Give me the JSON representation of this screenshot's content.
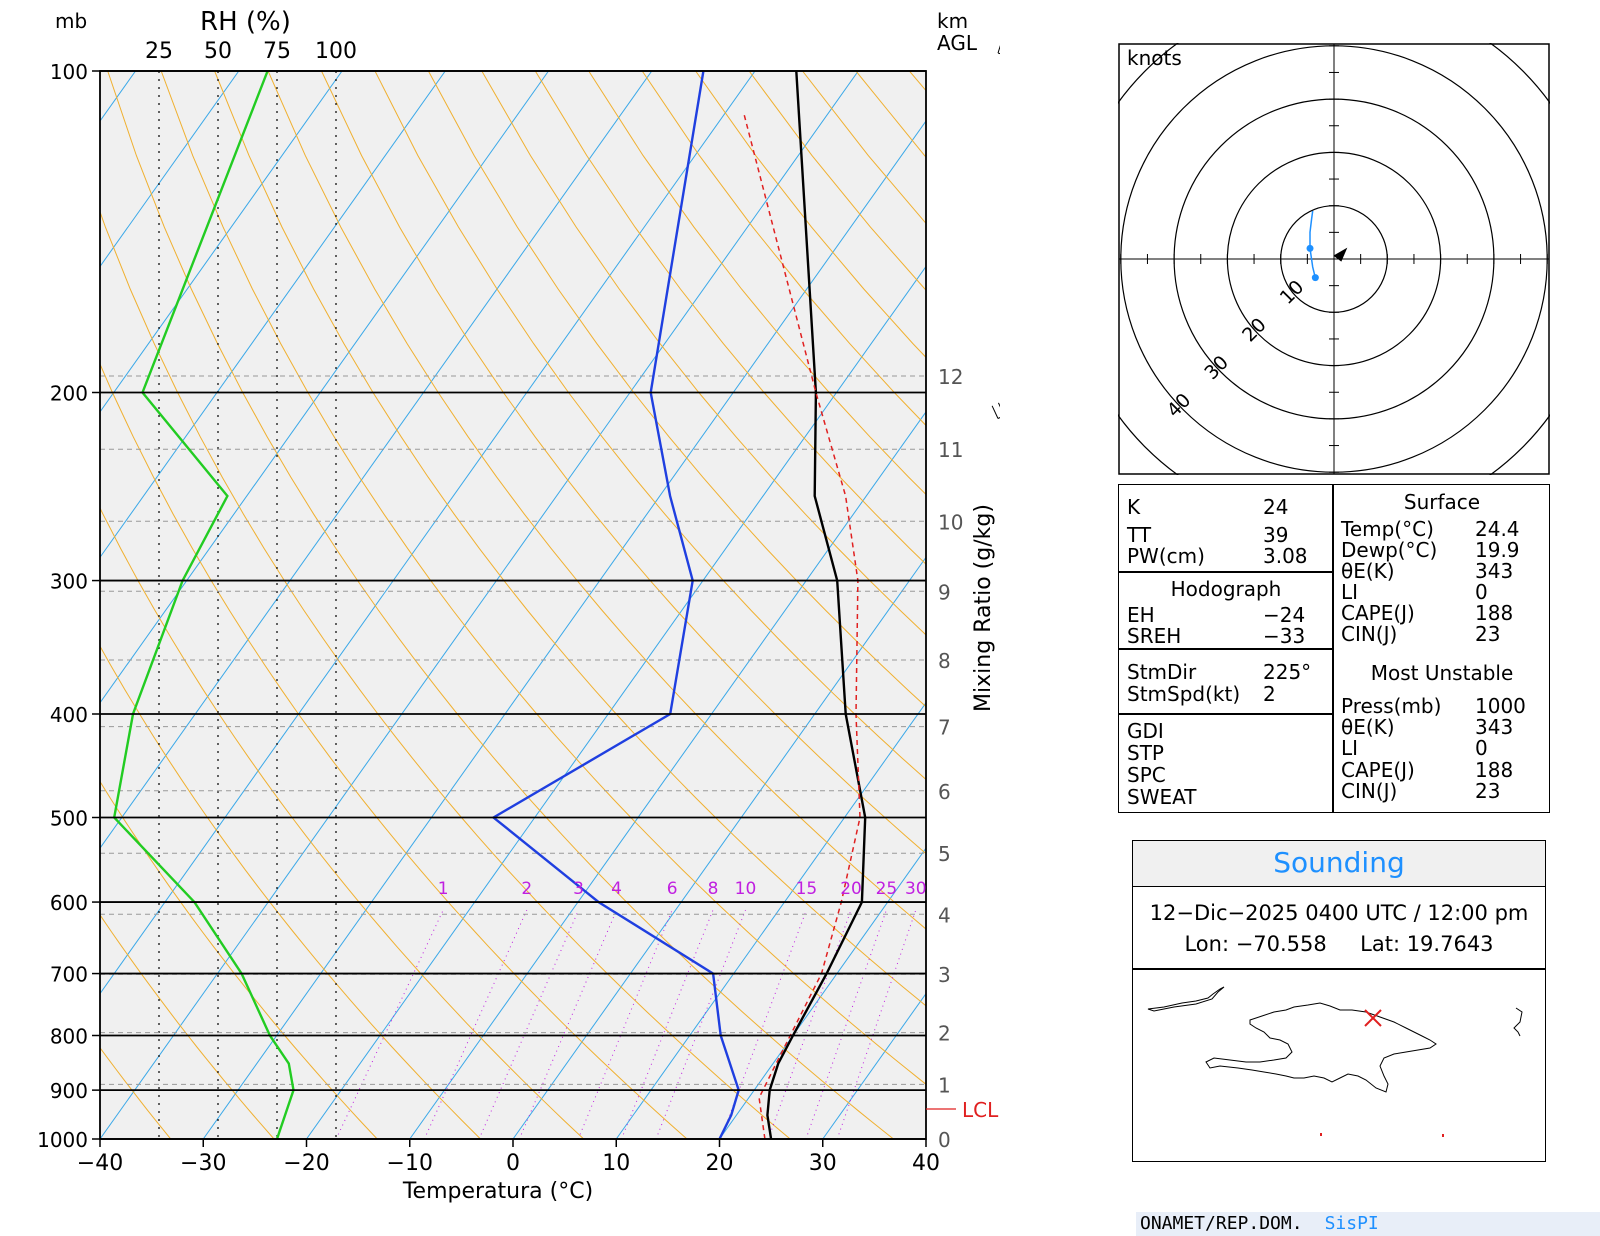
{
  "skewt": {
    "left_labels": {
      "mb": "mb",
      "rh": "RH (%)",
      "km": "km",
      "agl": "AGL"
    },
    "rh_ticks": [
      "25",
      "50",
      "75",
      "100"
    ],
    "pressure_levels": [
      100,
      200,
      300,
      400,
      500,
      600,
      700,
      800,
      900,
      1000
    ],
    "temp_ticks": [
      "−40",
      "−30",
      "−20",
      "−10",
      "0",
      "10",
      "20",
      "30",
      "40"
    ],
    "xlabel": "Temperatura (°C)",
    "mixing_ratio_label": "Mixing Ratio (g/kg)",
    "mixing_ratio_values": [
      "1",
      "2",
      "3",
      "4",
      "6",
      "8",
      "10",
      "15",
      "20",
      "25",
      "30"
    ],
    "height_km_ticks": [
      "0",
      "1",
      "2",
      "3",
      "4",
      "5",
      "6",
      "7",
      "8",
      "9",
      "10",
      "11",
      "12"
    ],
    "lcl_label": "LCL",
    "colors": {
      "temperature": "#000000",
      "dewpoint": "#1f3fe0",
      "rh": "#22cc22",
      "parcel": "#e02020",
      "dry_adiabat": "#f0b030",
      "isotherm": "#3aa8e8",
      "mixing_ratio": "#c020e0"
    }
  },
  "chart_data": {
    "type": "line",
    "x_axis": {
      "label": "Temperatura (°C)",
      "range": [
        -40,
        40
      ]
    },
    "y_axis": {
      "label": "mb",
      "range": [
        1000,
        100
      ],
      "scale": "log"
    },
    "series": [
      {
        "name": "Temperatura",
        "points": [
          [
            1000,
            25
          ],
          [
            950,
            23
          ],
          [
            900,
            21.5
          ],
          [
            850,
            20.5
          ],
          [
            800,
            20
          ],
          [
            700,
            19
          ],
          [
            600,
            17.5
          ],
          [
            500,
            12
          ],
          [
            400,
            3
          ],
          [
            300,
            -7
          ],
          [
            250,
            -15
          ],
          [
            200,
            -22
          ],
          [
            100,
            -46
          ]
        ]
      },
      {
        "name": "Dewpoint",
        "points": [
          [
            1000,
            20
          ],
          [
            950,
            19.5
          ],
          [
            900,
            18.5
          ],
          [
            800,
            13
          ],
          [
            700,
            8
          ],
          [
            600,
            -8
          ],
          [
            500,
            -24
          ],
          [
            400,
            -14
          ],
          [
            300,
            -21
          ],
          [
            250,
            -29
          ],
          [
            200,
            -38
          ],
          [
            100,
            -55
          ]
        ]
      },
      {
        "name": "RH",
        "points": [
          [
            1000,
            75
          ],
          [
            900,
            82
          ],
          [
            850,
            80
          ],
          [
            800,
            72
          ],
          [
            700,
            60
          ],
          [
            600,
            40
          ],
          [
            500,
            6
          ],
          [
            400,
            14
          ],
          [
            300,
            35
          ],
          [
            250,
            54
          ],
          [
            200,
            18
          ],
          [
            100,
            71
          ]
        ]
      },
      {
        "name": "Parcel",
        "points": [
          [
            1000,
            24.4
          ],
          [
            915,
            21
          ],
          [
            850,
            20.3
          ],
          [
            700,
            18.5
          ],
          [
            600,
            15.5
          ],
          [
            500,
            11.5
          ],
          [
            400,
            4
          ],
          [
            300,
            -5
          ],
          [
            250,
            -12
          ],
          [
            200,
            -22
          ],
          [
            110,
            -48
          ]
        ]
      }
    ]
  },
  "hodograph": {
    "units_label": "knots",
    "ring_labels": [
      "10",
      "20",
      "30",
      "40"
    ],
    "points_uv": [
      [
        -3.5,
        -3.5
      ],
      [
        -4.0,
        -1.5
      ],
      [
        -4.5,
        2.0
      ],
      [
        -4.5,
        5.0
      ],
      [
        -4.2,
        7.5
      ],
      [
        -4.0,
        9.0
      ]
    ],
    "storm_motion_uv": [
      1.0,
      1.0
    ]
  },
  "indices": {
    "K_label": "K",
    "K": "24",
    "TT_label": "TT",
    "TT": "39",
    "PW_label": "PW(cm)",
    "PW": "3.08",
    "hodograph_title": "Hodograph",
    "EH_label": "EH",
    "EH": "−24",
    "SREH_label": "SREH",
    "SREH": "−33",
    "StmDir_label": "StmDir",
    "StmDir": "225°",
    "StmSpd_label": "StmSpd(kt)",
    "StmSpd": "2",
    "GDI_label": "GDI",
    "STP_label": "STP",
    "SPC_label": "SPC",
    "SWEAT_label": "SWEAT"
  },
  "surface": {
    "title": "Surface",
    "temp_label": "Temp(°C)",
    "temp": "24.4",
    "dewp_label": "Dewp(°C)",
    "dewp": "19.9",
    "thetae_label": "θE(K)",
    "thetae": "343",
    "li_label": "LI",
    "li": "0",
    "cape_label": "CAPE(J)",
    "cape": "188",
    "cin_label": "CIN(J)",
    "cin": "23"
  },
  "most_unstable": {
    "title": "Most Unstable",
    "press_label": "Press(mb)",
    "press": "1000",
    "thetae_label": "θE(K)",
    "thetae": "343",
    "li_label": "LI",
    "li": "0",
    "cape_label": "CAPE(J)",
    "cape": "188",
    "cin_label": "CIN(J)",
    "cin": "23"
  },
  "info": {
    "title": "Sounding",
    "datetime": "12−Dic−2025 0400 UTC / 12:00 pm",
    "location": "Lon: −70.558     Lat: 19.7643"
  },
  "footer": {
    "org": "ONAMET/REP.DOM.",
    "system": "SisPI"
  }
}
